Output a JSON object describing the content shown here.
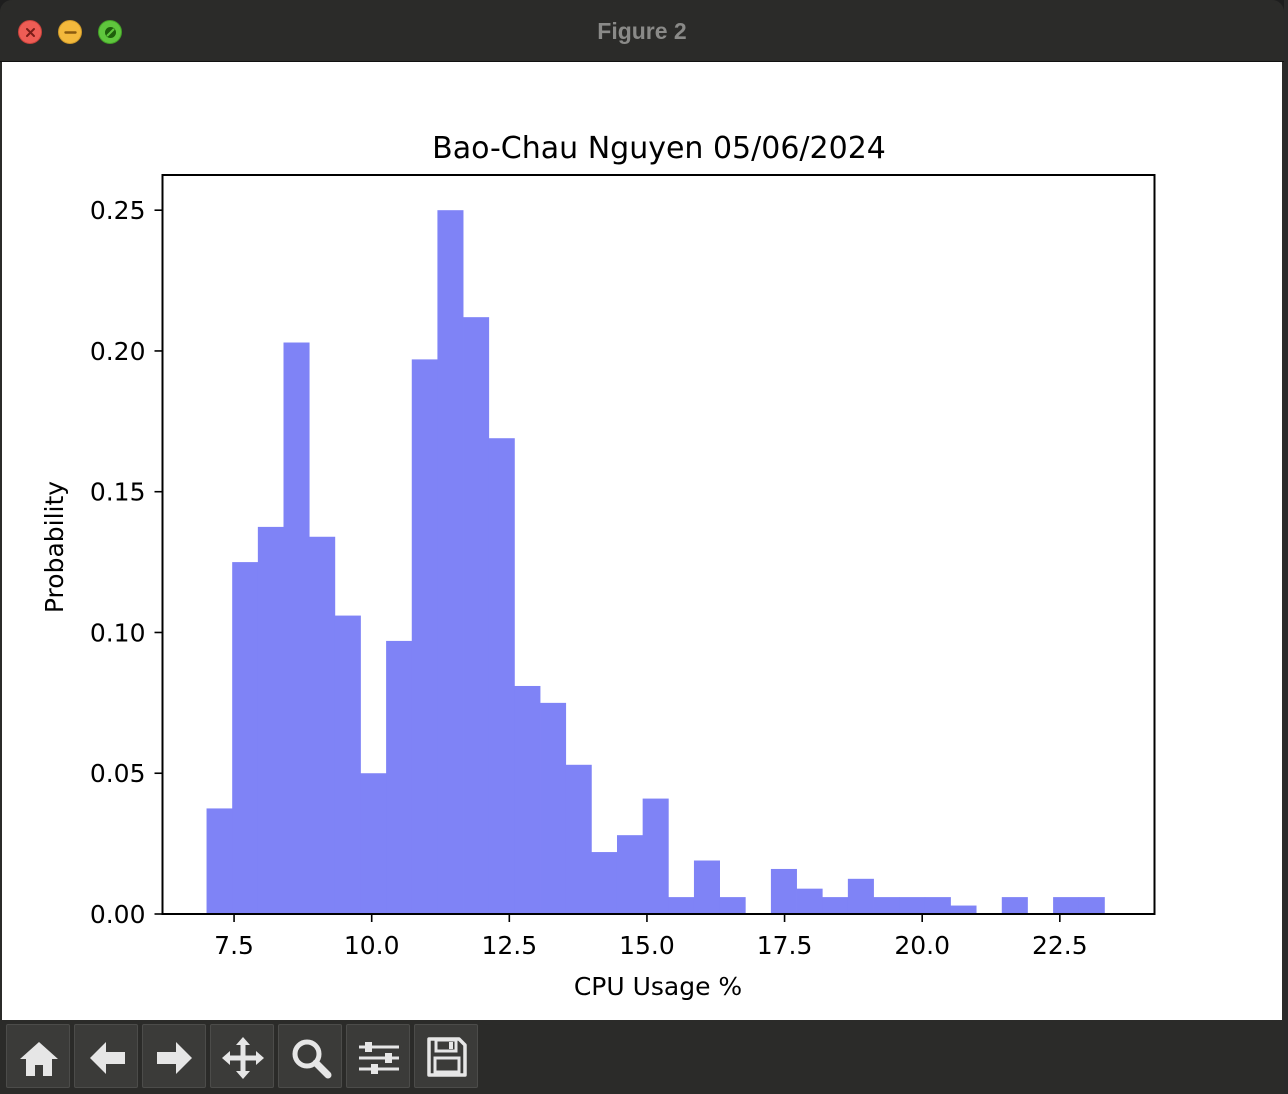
{
  "window": {
    "title": "Figure 2",
    "buttons": [
      "close",
      "minimize",
      "zoom"
    ]
  },
  "toolbar": {
    "tools": [
      {
        "name": "home-icon",
        "label": "Home"
      },
      {
        "name": "back-arrow-icon",
        "label": "Back"
      },
      {
        "name": "forward-arrow-icon",
        "label": "Forward"
      },
      {
        "name": "pan-move-icon",
        "label": "Pan"
      },
      {
        "name": "zoom-magnifier-icon",
        "label": "Zoom"
      },
      {
        "name": "configure-subplots-icon",
        "label": "Subplots"
      },
      {
        "name": "save-floppy-icon",
        "label": "Save"
      }
    ]
  },
  "chart_data": {
    "type": "bar",
    "title": "Bao-Chau Nguyen 05/06/2024",
    "xlabel": "CPU Usage %",
    "ylabel": "Probability",
    "bar_color": "#7f83f6",
    "bin_width": 0.466,
    "x_ticks": [
      "7.5",
      "10.0",
      "12.5",
      "15.0",
      "17.5",
      "20.0",
      "22.5"
    ],
    "x_tick_values": [
      7.5,
      10.0,
      12.5,
      15.0,
      17.5,
      20.0,
      22.5
    ],
    "y_ticks": [
      "0.00",
      "0.05",
      "0.10",
      "0.15",
      "0.20",
      "0.25"
    ],
    "y_tick_values": [
      0.0,
      0.05,
      0.1,
      0.15,
      0.2,
      0.25
    ],
    "xlim": [
      6.2,
      24.22
    ],
    "ylim": [
      0.0,
      0.2625
    ],
    "bin_starts": [
      7.0,
      7.466,
      7.932,
      8.398,
      8.864,
      9.33,
      9.796,
      10.262,
      10.728,
      11.194,
      11.66,
      12.126,
      12.592,
      13.058,
      13.524,
      13.99,
      14.456,
      14.922,
      15.388,
      15.854,
      16.32,
      16.786,
      17.252,
      17.718,
      18.184,
      18.65,
      19.116,
      19.582,
      20.048,
      20.514,
      20.98,
      21.446,
      21.912,
      22.378,
      22.844
    ],
    "values": [
      0.0375,
      0.125,
      0.1375,
      0.203,
      0.134,
      0.106,
      0.05,
      0.097,
      0.197,
      0.25,
      0.212,
      0.169,
      0.081,
      0.075,
      0.053,
      0.022,
      0.028,
      0.041,
      0.006,
      0.019,
      0.006,
      0.0,
      0.016,
      0.009,
      0.006,
      0.0125,
      0.006,
      0.006,
      0.006,
      0.003,
      0.0,
      0.006,
      0.0,
      0.006,
      0.006
    ],
    "grid": false,
    "legend": "none"
  }
}
